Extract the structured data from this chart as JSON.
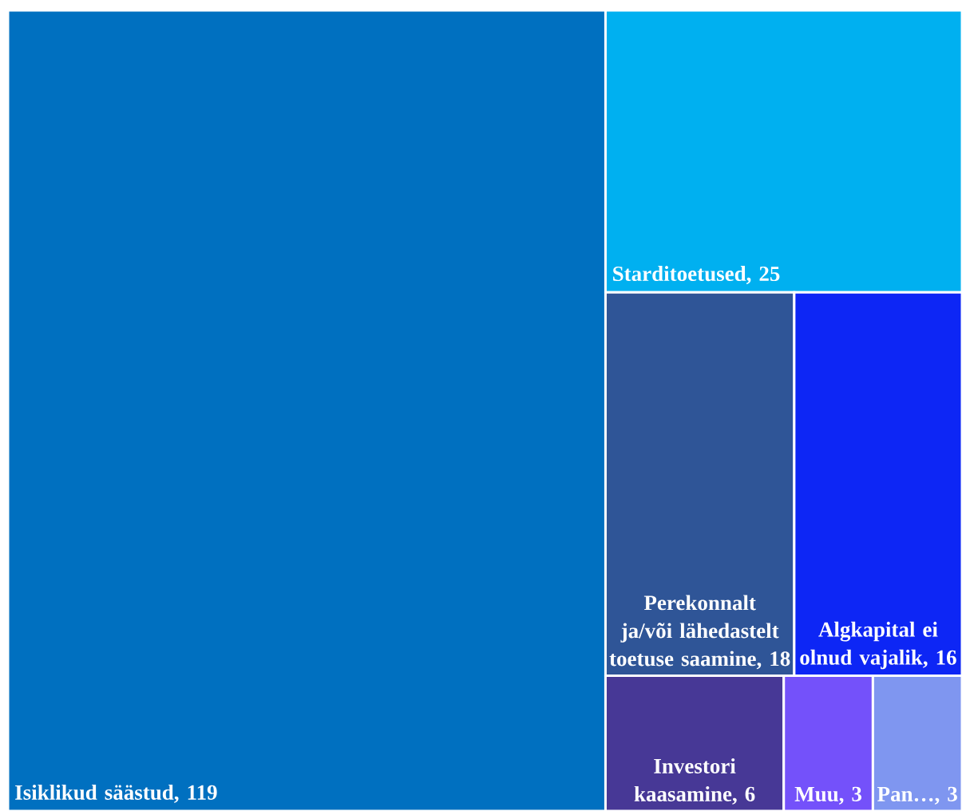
{
  "chart_data": {
    "type": "other",
    "categories": [
      "Isiklikud säästud",
      "Starditoetused",
      "Perekonnalt ja/või lähedastelt toetuse saamine",
      "Algkapital ei olnud vajalik",
      "Investori kaasamine",
      "Muu",
      "Pan…"
    ],
    "values": [
      119,
      25,
      18,
      16,
      6,
      3,
      3
    ],
    "value_labels": [
      ", 119",
      ", 25",
      ", 18",
      ", 16",
      ", 6",
      ", 3",
      ", 3"
    ],
    "colors": [
      "#0070c0",
      "#00b0f0",
      "#2f5597",
      "#0d26f5",
      "#473896",
      "#7451fa",
      "#7f96f0"
    ]
  }
}
